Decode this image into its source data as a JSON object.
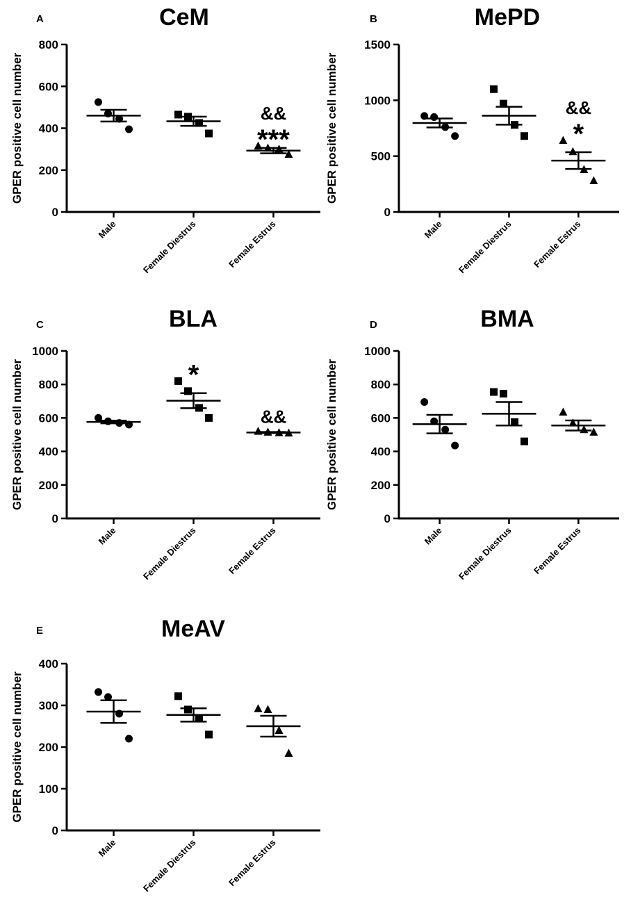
{
  "chart_data": [
    {
      "type": "scatter",
      "panel": "A",
      "title": "CeM",
      "ylabel": "GPER positive cell number",
      "ylim": [
        0,
        800
      ],
      "yticks": [
        0,
        200,
        400,
        600,
        800
      ],
      "categories": [
        "Male",
        "Female Diestrus",
        "Female Estrus"
      ],
      "series": [
        {
          "category": "Male",
          "marker": "circle",
          "points": [
            525,
            470,
            445,
            395
          ],
          "mean": 460,
          "sem": 28
        },
        {
          "category": "Female Diestrus",
          "marker": "square",
          "points": [
            465,
            455,
            425,
            375
          ],
          "mean": 433,
          "sem": 22
        },
        {
          "category": "Female Estrus",
          "marker": "triangle",
          "points": [
            315,
            305,
            300,
            275
          ],
          "mean": 293,
          "sem": 13
        }
      ],
      "annotations": [
        {
          "category": "Female Estrus",
          "lines": [
            "&&",
            "***"
          ]
        }
      ]
    },
    {
      "type": "scatter",
      "panel": "B",
      "title": "MePD",
      "ylabel": "GPER positive cell number",
      "ylim": [
        0,
        1500
      ],
      "yticks": [
        0,
        500,
        1000,
        1500
      ],
      "categories": [
        "Male",
        "Female Diestrus",
        "Female Estrus"
      ],
      "series": [
        {
          "category": "Male",
          "marker": "circle",
          "points": [
            860,
            850,
            760,
            680
          ],
          "mean": 797,
          "sem": 40
        },
        {
          "category": "Female Diestrus",
          "marker": "square",
          "points": [
            1100,
            970,
            780,
            680
          ],
          "mean": 862,
          "sem": 80
        },
        {
          "category": "Female Estrus",
          "marker": "triangle",
          "points": [
            640,
            540,
            380,
            280
          ],
          "mean": 460,
          "sem": 75
        }
      ],
      "annotations": [
        {
          "category": "Female Estrus",
          "lines": [
            "&&",
            "*"
          ]
        }
      ]
    },
    {
      "type": "scatter",
      "panel": "C",
      "title": "BLA",
      "ylabel": "GPER positive cell number",
      "ylim": [
        0,
        1000
      ],
      "yticks": [
        0,
        200,
        400,
        600,
        800,
        1000
      ],
      "categories": [
        "Male",
        "Female Diestrus",
        "Female Estrus"
      ],
      "series": [
        {
          "category": "Male",
          "marker": "circle",
          "points": [
            600,
            580,
            570,
            560
          ],
          "mean": 576,
          "sem": 8
        },
        {
          "category": "Female Diestrus",
          "marker": "square",
          "points": [
            820,
            760,
            660,
            600
          ],
          "mean": 703,
          "sem": 45
        },
        {
          "category": "Female Estrus",
          "marker": "triangle",
          "points": [
            520,
            515,
            512,
            510
          ],
          "mean": 513,
          "sem": 3
        }
      ],
      "annotations": [
        {
          "category": "Female Diestrus",
          "lines": [
            "*"
          ]
        },
        {
          "category": "Female Estrus",
          "lines": [
            "&&"
          ]
        }
      ]
    },
    {
      "type": "scatter",
      "panel": "D",
      "title": "BMA",
      "ylabel": "GPER positive cell number",
      "ylim": [
        0,
        1000
      ],
      "yticks": [
        0,
        200,
        400,
        600,
        800,
        1000
      ],
      "categories": [
        "Male",
        "Female Diestrus",
        "Female Estrus"
      ],
      "series": [
        {
          "category": "Male",
          "marker": "circle",
          "points": [
            695,
            580,
            530,
            435
          ],
          "mean": 563,
          "sem": 55
        },
        {
          "category": "Female Diestrus",
          "marker": "square",
          "points": [
            755,
            745,
            575,
            460
          ],
          "mean": 625,
          "sem": 70
        },
        {
          "category": "Female Estrus",
          "marker": "triangle",
          "points": [
            635,
            570,
            530,
            515
          ],
          "mean": 555,
          "sem": 30
        }
      ],
      "annotations": []
    },
    {
      "type": "scatter",
      "panel": "E",
      "title": "MeAV",
      "ylabel": "GPER positive cell number",
      "ylim": [
        0,
        400
      ],
      "yticks": [
        0,
        100,
        200,
        300,
        400
      ],
      "categories": [
        "Male",
        "Female Diestrus",
        "Female Estrus"
      ],
      "series": [
        {
          "category": "Male",
          "marker": "circle",
          "points": [
            332,
            320,
            280,
            220
          ],
          "mean": 285,
          "sem": 27
        },
        {
          "category": "Female Diestrus",
          "marker": "square",
          "points": [
            322,
            290,
            270,
            230
          ],
          "mean": 277,
          "sem": 16
        },
        {
          "category": "Female Estrus",
          "marker": "triangle",
          "points": [
            292,
            290,
            240,
            185
          ],
          "mean": 250,
          "sem": 25
        }
      ],
      "annotations": []
    }
  ]
}
